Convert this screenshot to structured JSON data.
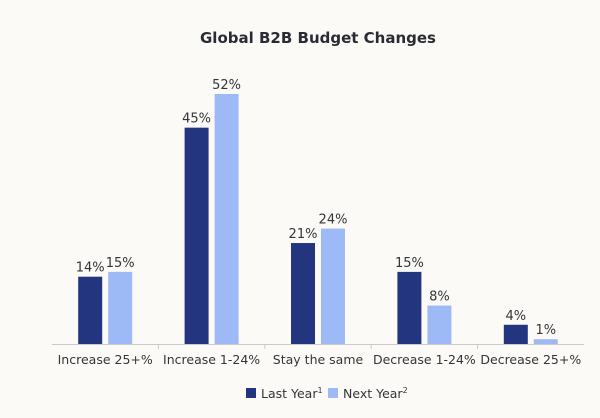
{
  "chart_data": {
    "type": "bar",
    "title": "Global B2B Budget Changes",
    "categories": [
      "Increase 25+%",
      "Increase 1-24%",
      "Stay the same",
      "Decrease 1-24%",
      "Decrease 25+%"
    ],
    "series": [
      {
        "name": "Last Year",
        "superscript": "1",
        "color": "#24357f",
        "values": [
          14,
          45,
          21,
          15,
          4
        ],
        "labels": [
          "14%",
          "45%",
          "21%",
          "15%",
          "4%"
        ]
      },
      {
        "name": "Next Year",
        "superscript": "2",
        "color": "#9dbaf7",
        "values": [
          15,
          52,
          24,
          8,
          1
        ],
        "labels": [
          "15%",
          "52%",
          "24%",
          "8%",
          "1%"
        ]
      }
    ],
    "xlabel": "",
    "ylabel": "",
    "ylim": [
      0,
      52
    ],
    "grid": false,
    "legend": "bottom-center"
  }
}
